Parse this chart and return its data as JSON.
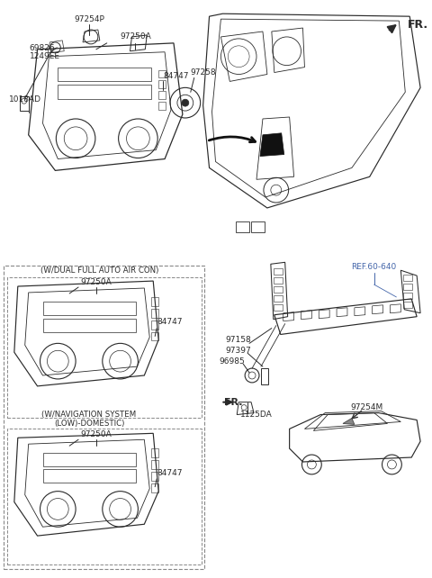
{
  "bg": "#ffffff",
  "lc": "#2a2a2a",
  "lbl": "#2a2a2a",
  "ref_c": "#4466aa",
  "section_dual": "(W/DUAL FULL AUTO AIR CON)",
  "section_nav_1": "(W/NAVIGATION SYSTEM",
  "section_nav_2": "(LOW)-DOMESTIC)",
  "fr_top": "FR.",
  "fr_bottom": "FR."
}
